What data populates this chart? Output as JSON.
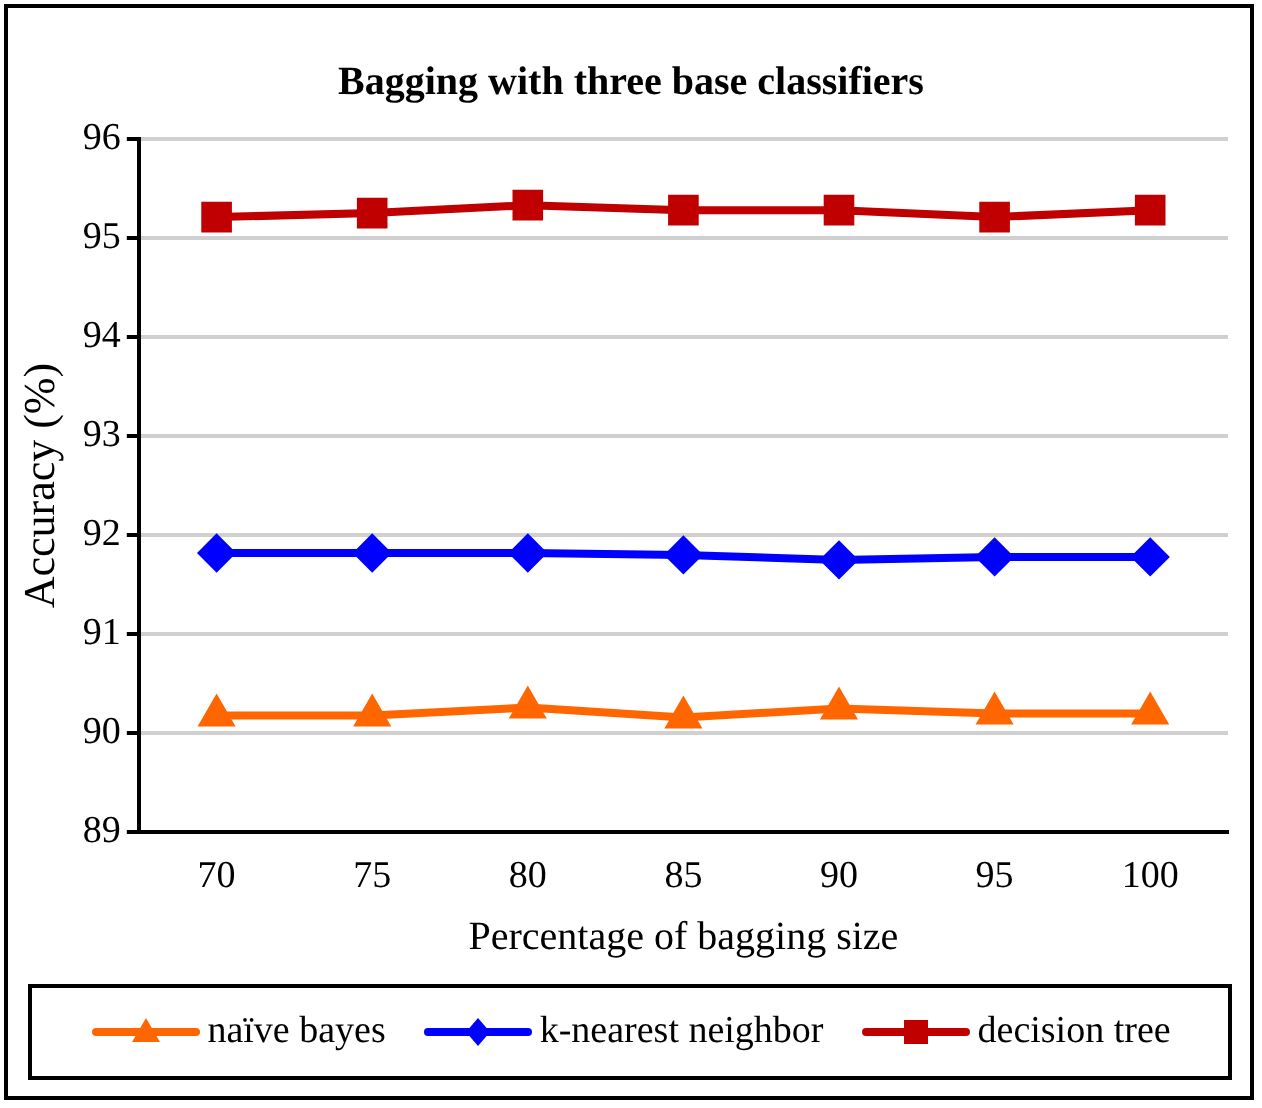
{
  "chart_data": {
    "type": "line",
    "title": "Bagging with three base classifiers",
    "xlabel": "Percentage of bagging size",
    "ylabel": "Accuracy (%)",
    "categories": [
      "70",
      "75",
      "80",
      "85",
      "90",
      "95",
      "100"
    ],
    "series": [
      {
        "name": "naïve bayes",
        "color": "#ff6600",
        "marker": "triangle",
        "values": [
          90.18,
          90.18,
          90.26,
          90.16,
          90.25,
          90.2,
          90.2
        ]
      },
      {
        "name": "k-nearest neighbor",
        "color": "#0000ff",
        "marker": "diamond",
        "values": [
          91.82,
          91.82,
          91.82,
          91.8,
          91.75,
          91.78,
          91.78
        ]
      },
      {
        "name": "decision tree",
        "color": "#c00000",
        "marker": "square",
        "values": [
          95.21,
          95.25,
          95.33,
          95.28,
          95.28,
          95.21,
          95.28
        ]
      }
    ],
    "ylim": [
      89,
      96
    ],
    "yticks": [
      89,
      90,
      91,
      92,
      93,
      94,
      95,
      96
    ],
    "grid": "y",
    "legend": "bottom"
  }
}
